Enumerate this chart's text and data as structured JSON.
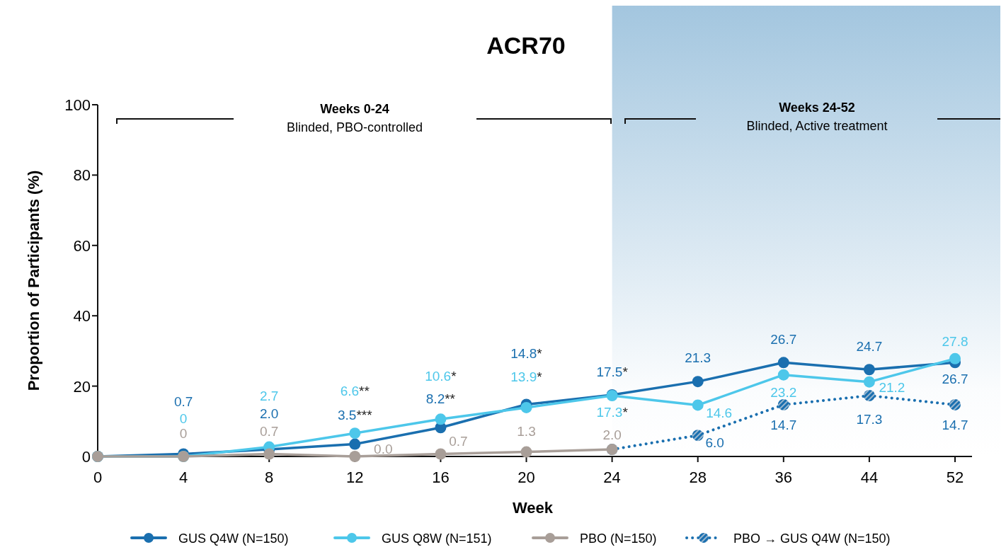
{
  "chart_data": {
    "type": "line",
    "title": "ACR70",
    "xlabel": "Week",
    "ylabel": "Proportion of Participants (%)",
    "categories": [
      "0",
      "4",
      "8",
      "12",
      "16",
      "20",
      "24",
      "28",
      "36",
      "44",
      "52"
    ],
    "series": [
      {
        "name": "GUS Q4W (N=150)",
        "color": "#1a6faf",
        "values": [
          0,
          0.7,
          2.0,
          3.5,
          8.2,
          14.8,
          17.5,
          21.3,
          26.7,
          24.7,
          26.7
        ],
        "value_labels": [
          null,
          "0.7",
          "2.0",
          "3.5***",
          "8.2**",
          "14.8*",
          "17.5*",
          "21.3",
          "26.7",
          "24.7",
          "26.7"
        ],
        "line_style": "solid",
        "marker": "circle"
      },
      {
        "name": "GUS Q8W (N=151)",
        "color": "#4dc7ea",
        "values": [
          0,
          0,
          2.7,
          6.6,
          10.6,
          13.9,
          17.3,
          14.6,
          23.2,
          21.2,
          27.8
        ],
        "value_labels": [
          null,
          "0",
          "2.7",
          "6.6**",
          "10.6*",
          "13.9*",
          "17.3*",
          "14.6",
          "23.2",
          "21.2",
          "27.8"
        ],
        "line_style": "solid",
        "marker": "circle"
      },
      {
        "name": "PBO (N=150)",
        "color": "#a89e98",
        "values": [
          0,
          0,
          0.7,
          0.0,
          0.7,
          1.3,
          2.0,
          null,
          null,
          null,
          null
        ],
        "value_labels": [
          null,
          "0",
          "0.7",
          "0.0",
          "0.7",
          "1.3",
          "2.0",
          null,
          null,
          null,
          null
        ],
        "line_style": "solid",
        "marker": "circle"
      },
      {
        "name": "PBO → GUS Q4W (N=150)",
        "color": "#1a6faf",
        "values": [
          null,
          null,
          null,
          null,
          null,
          null,
          2.0,
          6.0,
          14.7,
          17.3,
          14.7
        ],
        "value_labels": [
          null,
          null,
          null,
          null,
          null,
          null,
          null,
          "6.0",
          "14.7",
          "17.3",
          "14.7"
        ],
        "line_style": "dotted",
        "marker": "circle"
      }
    ],
    "ylim": [
      0,
      100
    ],
    "yticks": [
      0,
      20,
      40,
      60,
      80,
      100
    ],
    "grid": false,
    "legend": "bottom",
    "bands": [
      {
        "axis": "x",
        "from": "24",
        "to": "52",
        "color": "#a3c6df"
      }
    ],
    "annotations": [
      "Weeks 0-24",
      "Blinded, PBO-controlled",
      "Weeks 24-52",
      "Blinded, Active treatment"
    ]
  }
}
